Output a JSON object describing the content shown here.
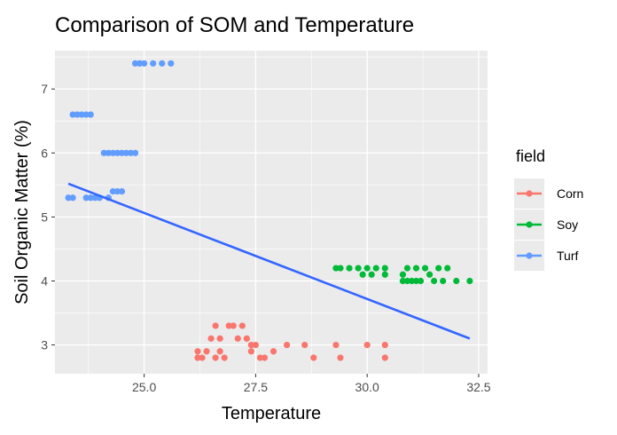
{
  "chart_data": {
    "type": "scatter",
    "title": "Comparison of SOM and Temperature",
    "xlabel": "Temperature",
    "ylabel": "Soil Organic Matter (%)",
    "xlim": [
      23.0,
      32.7
    ],
    "ylim": [
      2.55,
      7.6
    ],
    "x_ticks": [
      {
        "value": 25.0,
        "label": "25.0"
      },
      {
        "value": 27.5,
        "label": "27.5"
      },
      {
        "value": 30.0,
        "label": "30.0"
      },
      {
        "value": 32.5,
        "label": "32.5"
      }
    ],
    "y_ticks": [
      {
        "value": 3,
        "label": "3"
      },
      {
        "value": 4,
        "label": "4"
      },
      {
        "value": 5,
        "label": "5"
      },
      {
        "value": 6,
        "label": "6"
      },
      {
        "value": 7,
        "label": "7"
      }
    ],
    "grid": true,
    "legend": {
      "title": "field",
      "placement": "right"
    },
    "series": [
      {
        "name": "Corn",
        "color": "#F8766D",
        "points": [
          [
            26.2,
            2.8
          ],
          [
            26.2,
            2.9
          ],
          [
            26.3,
            2.8
          ],
          [
            26.4,
            2.9
          ],
          [
            26.5,
            3.1
          ],
          [
            26.6,
            2.8
          ],
          [
            26.6,
            3.3
          ],
          [
            26.7,
            3.1
          ],
          [
            26.7,
            2.9
          ],
          [
            26.8,
            2.8
          ],
          [
            26.9,
            3.3
          ],
          [
            27.0,
            3.3
          ],
          [
            27.1,
            3.1
          ],
          [
            27.2,
            3.3
          ],
          [
            27.3,
            3.1
          ],
          [
            27.4,
            3.0
          ],
          [
            27.4,
            2.9
          ],
          [
            27.5,
            3.0
          ],
          [
            27.6,
            2.8
          ],
          [
            27.7,
            2.8
          ],
          [
            27.9,
            2.9
          ],
          [
            28.2,
            3.0
          ],
          [
            28.6,
            3.0
          ],
          [
            28.8,
            2.8
          ],
          [
            29.3,
            3.0
          ],
          [
            29.4,
            2.8
          ],
          [
            30.0,
            3.0
          ],
          [
            30.4,
            3.0
          ],
          [
            30.4,
            2.8
          ]
        ]
      },
      {
        "name": "Soy",
        "color": "#00BA38",
        "points": [
          [
            29.3,
            4.2
          ],
          [
            29.4,
            4.2
          ],
          [
            29.6,
            4.2
          ],
          [
            29.8,
            4.2
          ],
          [
            29.9,
            4.1
          ],
          [
            30.0,
            4.2
          ],
          [
            30.1,
            4.1
          ],
          [
            30.2,
            4.2
          ],
          [
            30.4,
            4.2
          ],
          [
            30.4,
            4.1
          ],
          [
            30.8,
            4.1
          ],
          [
            30.8,
            4.0
          ],
          [
            30.9,
            4.2
          ],
          [
            31.0,
            4.0
          ],
          [
            31.1,
            4.2
          ],
          [
            31.2,
            4.0
          ],
          [
            31.3,
            4.2
          ],
          [
            31.4,
            4.1
          ],
          [
            31.5,
            4.0
          ],
          [
            31.6,
            4.2
          ],
          [
            31.7,
            4.0
          ],
          [
            31.8,
            4.2
          ],
          [
            32.0,
            4.0
          ],
          [
            32.3,
            4.0
          ],
          [
            30.9,
            4.0
          ],
          [
            31.1,
            4.0
          ]
        ]
      },
      {
        "name": "Turf",
        "color": "#619CFF",
        "points": [
          [
            23.3,
            5.3
          ],
          [
            23.4,
            5.3
          ],
          [
            23.4,
            6.6
          ],
          [
            23.5,
            6.6
          ],
          [
            23.6,
            6.6
          ],
          [
            23.7,
            6.6
          ],
          [
            23.8,
            6.6
          ],
          [
            23.7,
            5.3
          ],
          [
            23.8,
            5.3
          ],
          [
            23.9,
            5.3
          ],
          [
            24.0,
            5.3
          ],
          [
            24.1,
            6.0
          ],
          [
            24.2,
            6.0
          ],
          [
            24.2,
            5.3
          ],
          [
            24.3,
            6.0
          ],
          [
            24.4,
            6.0
          ],
          [
            24.4,
            5.4
          ],
          [
            24.5,
            6.0
          ],
          [
            24.5,
            5.4
          ],
          [
            24.6,
            6.0
          ],
          [
            24.7,
            6.0
          ],
          [
            24.8,
            6.0
          ],
          [
            24.8,
            7.4
          ],
          [
            24.9,
            7.4
          ],
          [
            25.0,
            7.4
          ],
          [
            25.2,
            7.4
          ],
          [
            25.4,
            7.4
          ],
          [
            25.6,
            7.4
          ],
          [
            24.9,
            7.4
          ],
          [
            24.3,
            5.4
          ]
        ]
      }
    ],
    "trend_line": {
      "color": "#3366FF",
      "points": [
        [
          23.3,
          5.52
        ],
        [
          32.3,
          3.1
        ]
      ]
    }
  }
}
